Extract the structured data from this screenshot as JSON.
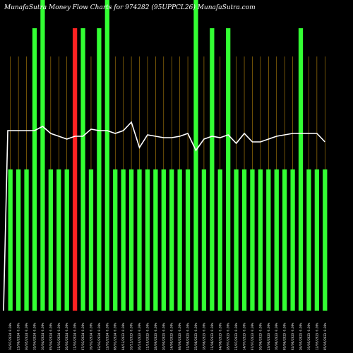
{
  "chart_data": {
    "type": "bar",
    "title": "MunafaSutra  Money Flow  Charts for 974282 (95UPPCL26) MunafaSutra.com",
    "categories": [
      "10/07/2024 0.00%",
      "23/06/2024 0.00%",
      "30/05/2024 0.00%",
      "19/04/2024 0.00%",
      "10/04/2024 0.00%",
      "05/04/2024 0.00%",
      "31/03/2024 0.00%",
      "26/03/2024 0.00%",
      "11/03/2024 0.00%",
      "07/03/2024 0.00%",
      "16/02/2024 0.00%",
      "02/02/2024 0.00%",
      "12/01/2024 0.00%",
      "08/01/2024 0.00%",
      "04/12/2023 0.00%",
      "10/11/2023 0.00%",
      "26/10/2023 0.00%",
      "11/10/2023 0.00%",
      "28/09/2023 0.00%",
      "20/09/2023 0.00%",
      "14/09/2023 0.00%",
      "08/09/2023 0.00%",
      "31/08/2023 0.00%",
      "25/08/2023 0.00%",
      "18/08/2023 0.00%",
      "11/08/2023 0.00%",
      "04/08/2023 0.00%",
      "28/07/2023 0.00%",
      "21/07/2023 0.00%",
      "14/07/2023 0.00%",
      "07/07/2023 0.00%",
      "30/06/2023 0.00%",
      "23/06/2023 0.00%",
      "16/06/2023 0.00%",
      "09/06/2023 0.00%",
      "02/06/2023 0.00%",
      "26/05/2023 0.00%",
      "19/05/2023 0.00%",
      "12/05/2023 0.00%",
      "05/05/2023 0.00%"
    ],
    "bar_values": [
      1,
      1,
      1,
      2,
      3,
      1,
      1,
      1,
      2,
      2,
      1,
      2,
      3,
      1,
      1,
      1,
      1,
      1,
      1,
      1,
      1,
      1,
      1,
      3,
      1,
      2,
      1,
      2,
      1,
      1,
      1,
      1,
      1,
      1,
      1,
      1,
      2,
      1,
      1,
      1
    ],
    "bar_colors": [
      "green",
      "green",
      "green",
      "green",
      "green",
      "green",
      "green",
      "green",
      "red",
      "green",
      "green",
      "green",
      "green",
      "green",
      "green",
      "green",
      "green",
      "green",
      "green",
      "green",
      "green",
      "green",
      "green",
      "green",
      "green",
      "green",
      "green",
      "green",
      "green",
      "green",
      "green",
      "green",
      "green",
      "green",
      "green",
      "green",
      "green",
      "green",
      "green",
      "green"
    ],
    "line_values": [
      1.0,
      1.0,
      1.0,
      1.0,
      1.03,
      0.98,
      0.96,
      0.94,
      0.96,
      0.96,
      1.01,
      1.0,
      1.0,
      0.98,
      1.0,
      1.06,
      0.88,
      0.97,
      0.96,
      0.95,
      0.95,
      0.96,
      0.98,
      0.86,
      0.94,
      0.96,
      0.95,
      0.97,
      0.91,
      0.98,
      0.92,
      0.92,
      0.94,
      0.96,
      0.97,
      0.98,
      0.98,
      0.98,
      0.98,
      0.92
    ],
    "ylim": [
      0,
      2
    ],
    "colors": {
      "background": "#000000",
      "green": "#33ff33",
      "red": "#ff2222",
      "grid": "#b8860b",
      "line": "#ffffff",
      "text": "#ffffff"
    }
  }
}
